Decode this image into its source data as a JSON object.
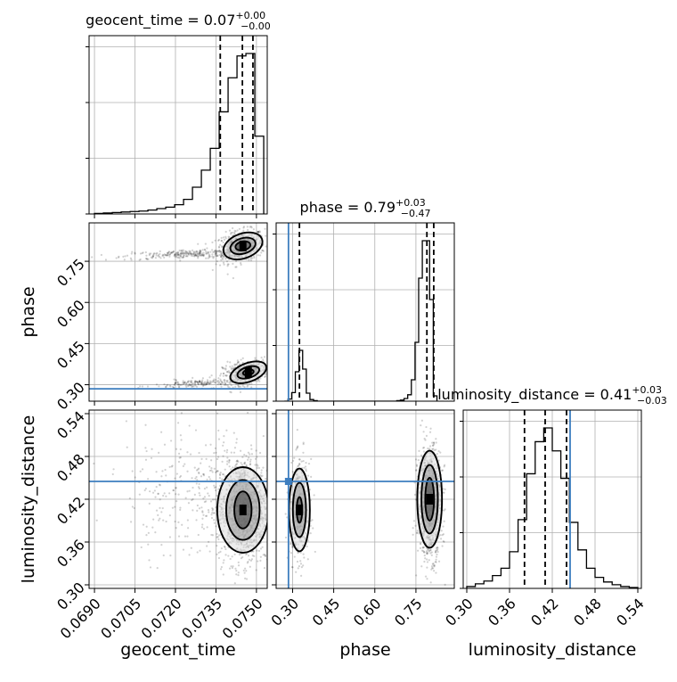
{
  "chart_data": {
    "type": "corner",
    "grid": true,
    "truth_color": "#3d7ebf",
    "parameters": [
      {
        "name": "geocent_time",
        "label": "geocent_time",
        "range": [
          0.0688,
          0.0754
        ],
        "ticks": [
          0.069,
          0.0705,
          0.072,
          0.0735,
          0.075
        ],
        "tick_labels": [
          "0.0690",
          "0.0705",
          "0.0720",
          "0.0735",
          "0.0750"
        ]
      },
      {
        "name": "phase",
        "label": "phase",
        "range": [
          0.24,
          0.89
        ],
        "ticks": [
          0.3,
          0.45,
          0.6,
          0.75
        ],
        "tick_labels": [
          "0.30",
          "0.45",
          "0.60",
          "0.75"
        ]
      },
      {
        "name": "luminosity_distance",
        "label": "luminosity_distance",
        "range": [
          0.295,
          0.545
        ],
        "ticks": [
          0.3,
          0.36,
          0.42,
          0.48,
          0.54
        ],
        "tick_labels": [
          "0.30",
          "0.36",
          "0.42",
          "0.48",
          "0.54"
        ]
      }
    ],
    "titles": [
      {
        "parameter": "geocent_time",
        "text": "geocent_time = 0.07",
        "plus": "+0.00",
        "minus": "−0.00"
      },
      {
        "parameter": "phase",
        "text": "phase = 0.79",
        "plus": "+0.03",
        "minus": "−0.47"
      },
      {
        "parameter": "luminosity_distance",
        "text": "luminosity_distance = 0.41",
        "plus": "+0.03",
        "minus": "−0.03"
      }
    ],
    "truths": {
      "geocent_time": null,
      "phase": 0.285,
      "luminosity_distance": 0.445
    },
    "quantiles": {
      "geocent_time": [
        0.07366,
        0.07448,
        0.07487
      ],
      "phase": [
        0.325,
        0.79,
        0.815
      ],
      "luminosity_distance": [
        0.381,
        0.41,
        0.44
      ]
    },
    "histograms": {
      "geocent_time": {
        "bin_edges": [
          0.069,
          0.06933,
          0.06966,
          0.06999,
          0.07032,
          0.07065,
          0.07098,
          0.07131,
          0.07164,
          0.07197,
          0.0723,
          0.07263,
          0.07296,
          0.07329,
          0.07362,
          0.07395,
          0.07428,
          0.07461,
          0.07494,
          0.07527
        ],
        "counts": [
          1,
          2,
          3,
          4,
          5,
          6,
          8,
          11,
          14,
          19,
          30,
          55,
          90,
          135,
          210,
          280,
          325,
          330,
          160
        ]
      },
      "phase": {
        "bin_edges": [
          0.27,
          0.2833,
          0.2967,
          0.31,
          0.3233,
          0.3367,
          0.35,
          0.3633,
          0.3767,
          0.39,
          0.4033,
          0.68,
          0.6933,
          0.7067,
          0.72,
          0.7333,
          0.7467,
          0.76,
          0.7733,
          0.7867,
          0.8,
          0.8133,
          0.8267
        ],
        "counts": [
          0,
          4,
          16,
          55,
          95,
          60,
          15,
          3,
          1,
          0,
          0,
          1,
          2,
          5,
          12,
          40,
          110,
          230,
          300,
          300,
          190,
          10
        ]
      },
      "luminosity_distance": {
        "bin_edges": [
          0.3,
          0.312,
          0.324,
          0.336,
          0.348,
          0.36,
          0.372,
          0.384,
          0.396,
          0.408,
          0.42,
          0.432,
          0.444,
          0.456,
          0.468,
          0.48,
          0.492,
          0.504,
          0.516,
          0.528,
          0.54
        ],
        "counts": [
          2,
          5,
          8,
          14,
          22,
          40,
          75,
          125,
          160,
          175,
          150,
          120,
          72,
          42,
          22,
          12,
          7,
          4,
          2,
          1
        ]
      }
    },
    "pair_panels": [
      {
        "x": "geocent_time",
        "y": "phase",
        "clusters": [
          {
            "cx": 0.0744,
            "cy": 0.805,
            "sx": 0.00045,
            "sy": 0.028,
            "rot": 0.25,
            "n": 550
          },
          {
            "cx": 0.0724,
            "cy": 0.776,
            "sx": 0.0012,
            "sy": 0.008,
            "rot": 0.55,
            "n": 260
          },
          {
            "cx": 0.0746,
            "cy": 0.345,
            "sx": 0.00042,
            "sy": 0.022,
            "rot": 0.3,
            "n": 380
          },
          {
            "cx": 0.073,
            "cy": 0.305,
            "sx": 0.0009,
            "sy": 0.008,
            "rot": 0.55,
            "n": 180
          }
        ]
      },
      {
        "x": "geocent_time",
        "y": "luminosity_distance",
        "clusters": [
          {
            "cx": 0.0745,
            "cy": 0.405,
            "sx": 0.00048,
            "sy": 0.038,
            "rot": 0.0,
            "n": 1100
          },
          {
            "cx": 0.0728,
            "cy": 0.43,
            "sx": 0.0013,
            "sy": 0.045,
            "rot": 0.0,
            "n": 300
          }
        ]
      },
      {
        "x": "phase",
        "y": "luminosity_distance",
        "clusters": [
          {
            "cx": 0.325,
            "cy": 0.405,
            "sx": 0.018,
            "sy": 0.034,
            "rot": 0.0,
            "n": 450
          },
          {
            "cx": 0.8,
            "cy": 0.415,
            "sx": 0.022,
            "sy": 0.038,
            "rot": 0.0,
            "n": 1000
          }
        ]
      }
    ],
    "contours": [
      {
        "x": "geocent_time",
        "y": "phase",
        "blobs": [
          {
            "cx": 0.0745,
            "cy": 0.806,
            "levels": [
              {
                "rx": 0.00075,
                "ry": 0.045,
                "rot": -0.35
              },
              {
                "rx": 0.00048,
                "ry": 0.028,
                "rot": -0.3
              },
              {
                "rx": 0.00028,
                "ry": 0.016,
                "rot": -0.2
              }
            ]
          },
          {
            "cx": 0.0747,
            "cy": 0.345,
            "levels": [
              {
                "rx": 0.0007,
                "ry": 0.034,
                "rot": -0.35
              },
              {
                "rx": 0.00042,
                "ry": 0.02,
                "rot": -0.3
              },
              {
                "rx": 0.0002,
                "ry": 0.01,
                "rot": -0.2
              }
            ]
          }
        ]
      },
      {
        "x": "geocent_time",
        "y": "luminosity_distance",
        "blobs": [
          {
            "cx": 0.0745,
            "cy": 0.405,
            "levels": [
              {
                "rx": 0.00095,
                "ry": 0.06,
                "rot": 0.0
              },
              {
                "rx": 0.00062,
                "ry": 0.042,
                "rot": 0.0
              },
              {
                "rx": 0.00032,
                "ry": 0.026,
                "rot": 0.0
              }
            ]
          }
        ]
      },
      {
        "x": "phase",
        "y": "luminosity_distance",
        "blobs": [
          {
            "cx": 0.325,
            "cy": 0.405,
            "levels": [
              {
                "rx": 0.038,
                "ry": 0.058,
                "rot": 0.0
              },
              {
                "rx": 0.024,
                "ry": 0.038,
                "rot": 0.0
              },
              {
                "rx": 0.01,
                "ry": 0.018,
                "rot": 0.0
              }
            ]
          },
          {
            "cx": 0.8,
            "cy": 0.42,
            "levels": [
              {
                "rx": 0.045,
                "ry": 0.068,
                "rot": 0.0
              },
              {
                "rx": 0.03,
                "ry": 0.048,
                "rot": 0.0
              },
              {
                "rx": 0.016,
                "ry": 0.03,
                "rot": 0.0
              }
            ]
          }
        ]
      }
    ]
  }
}
